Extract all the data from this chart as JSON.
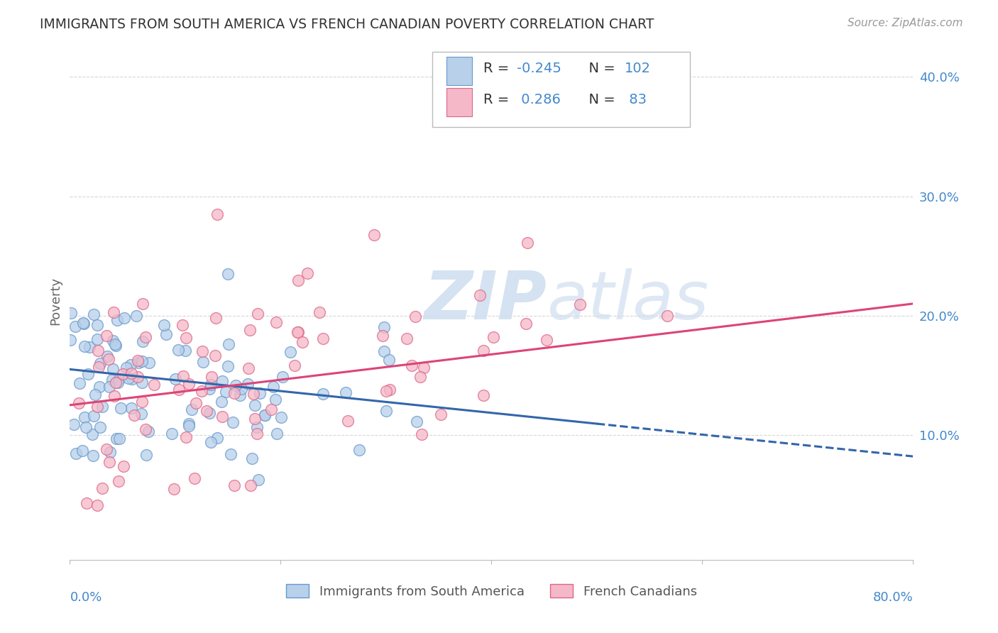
{
  "title": "IMMIGRANTS FROM SOUTH AMERICA VS FRENCH CANADIAN POVERTY CORRELATION CHART",
  "source": "Source: ZipAtlas.com",
  "ylabel": "Poverty",
  "yticks": [
    0.0,
    0.1,
    0.2,
    0.3,
    0.4
  ],
  "ytick_labels": [
    "",
    "10.0%",
    "20.0%",
    "30.0%",
    "40.0%"
  ],
  "xlim": [
    0.0,
    0.8
  ],
  "ylim": [
    -0.005,
    0.43
  ],
  "series1": {
    "name": "Immigrants from South America",
    "face_color": "#b8d0ea",
    "edge_color": "#6699cc",
    "R": -0.245,
    "N": 102,
    "line_color": "#3366aa",
    "line_dash": "solid"
  },
  "series2": {
    "name": "French Canadians",
    "face_color": "#f5b8c8",
    "edge_color": "#dd6688",
    "R": 0.286,
    "N": 83,
    "line_color": "#dd4477",
    "line_dash": "solid"
  },
  "watermark_color": "#d0dff0",
  "background_color": "#ffffff",
  "grid_color": "#cccccc",
  "tick_label_color": "#4488cc",
  "legend_value_color": "#4488cc",
  "legend_label_color": "#333333",
  "title_color": "#333333",
  "line1_x0": 0.0,
  "line1_y0": 0.155,
  "line1_x1": 0.8,
  "line1_y1": 0.082,
  "line1_solid_end": 0.5,
  "line2_x0": 0.0,
  "line2_y0": 0.125,
  "line2_x1": 0.8,
  "line2_y1": 0.21
}
